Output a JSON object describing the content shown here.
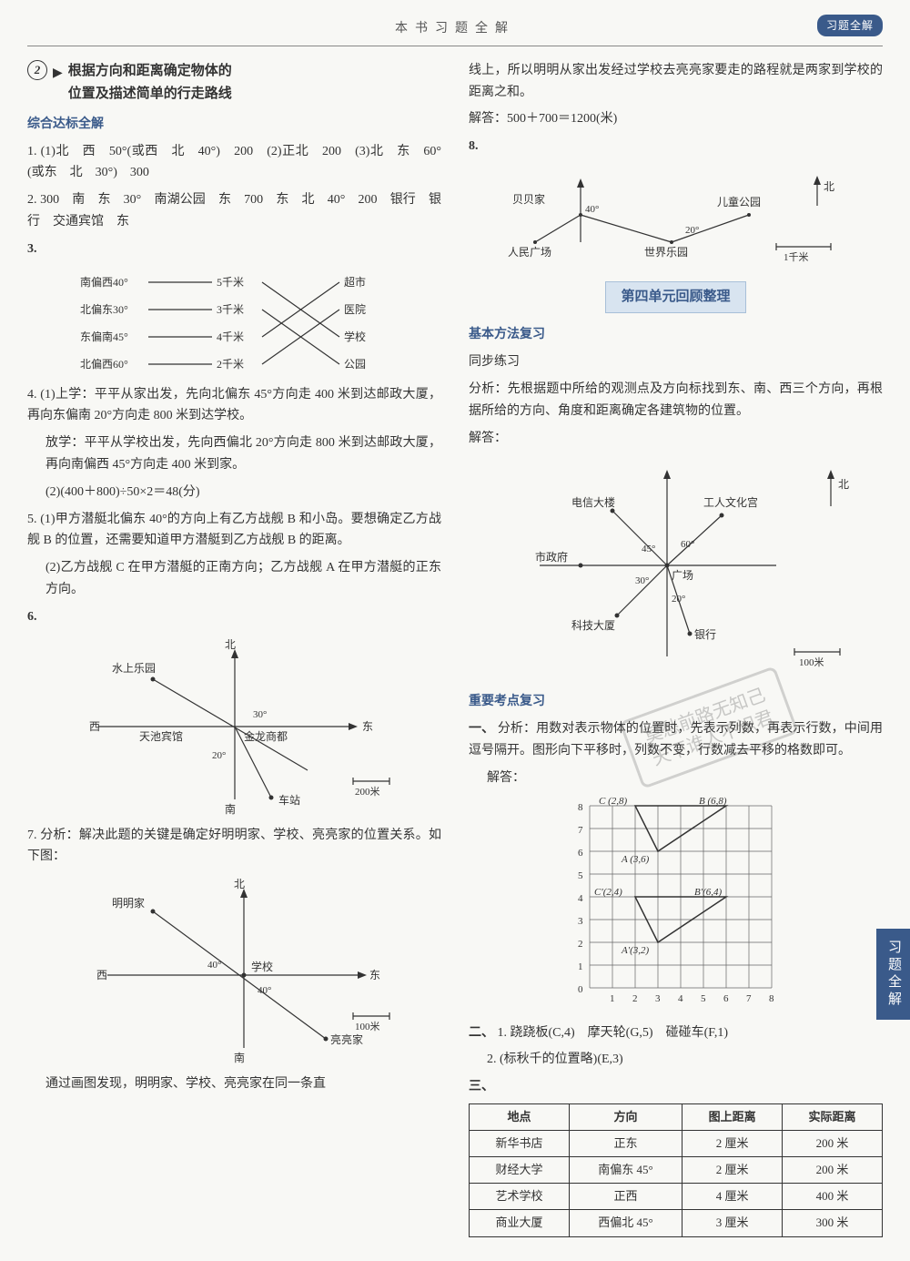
{
  "header": {
    "title": "本书习题全解",
    "badge": "习题全解"
  },
  "sideTab": "习题全解",
  "leftCol": {
    "section2": {
      "num": "2",
      "title_line1": "根据方向和距离确定物体的",
      "title_line2": "位置及描述简单的行走路线"
    },
    "subheading": "综合达标全解",
    "q1": "1. (1)北　西　50°(或西　北　40°)　200　(2)正北　200　(3)北　东　60°(或东　北　30°)　300",
    "q2": "2. 300　南　东　30°　南湖公园　东　700　东　北　40°　200　银行　银行　交通宾馆　东",
    "q3_num": "3.",
    "q3_left": [
      "南偏西40°",
      "北偏东30°",
      "东偏南45°",
      "北偏西60°"
    ],
    "q3_mid": [
      "5千米",
      "3千米",
      "4千米",
      "2千米"
    ],
    "q3_right": [
      "超市",
      "医院",
      "学校",
      "公园"
    ],
    "q4_1": "4. (1)上学：平平从家出发，先向北偏东 45°方向走 400 米到达邮政大厦，再向东偏南 20°方向走 800 米到达学校。",
    "q4_2": "放学：平平从学校出发，先向西偏北 20°方向走 800 米到达邮政大厦，再向南偏西 45°方向走 400 米到家。",
    "q4_3": "(2)(400＋800)÷50×2＝48(分)",
    "q5_1": "5. (1)甲方潜艇北偏东 40°的方向上有乙方战舰 B 和小岛。要想确定乙方战舰 B 的位置，还需要知道甲方潜艇到乙方战舰 B 的距离。",
    "q5_2": "(2)乙方战舰 C 在甲方潜艇的正南方向；乙方战舰 A 在甲方潜艇的正东方向。",
    "q6_num": "6.",
    "q6_labels": {
      "north": "北",
      "south": "南",
      "west": "西",
      "east": "东",
      "park": "水上乐园",
      "hotel": "天池宾馆",
      "mall": "金龙商都",
      "station": "车站",
      "a30": "30°",
      "a20": "20°",
      "scale": "200米"
    },
    "q7_intro": "7. 分析：解决此题的关键是确定好明明家、学校、亮亮家的位置关系。如下图：",
    "q7_labels": {
      "north": "北",
      "south": "南",
      "west": "西",
      "east": "东",
      "ming": "明明家",
      "school": "学校",
      "liang": "亮亮家",
      "a40a": "40°",
      "a40b": "40°",
      "scale": "100米"
    },
    "q7_end": "通过画图发现，明明家、学校、亮亮家在同一条直"
  },
  "rightCol": {
    "cont1": "线上，所以明明从家出发经过学校去亮亮家要走的路程就是两家到学校的距离之和。",
    "cont2": "解答：500＋700＝1200(米)",
    "q8_num": "8.",
    "q8_labels": {
      "bei1": "贝贝家",
      "park": "儿童公园",
      "square": "人民广场",
      "world": "世界乐园",
      "a40": "40°",
      "a20": "20°",
      "north": "北",
      "scale": "1千米"
    },
    "unitTitle": "第四单元回顾整理",
    "sub1": "基本方法复习",
    "sub2": "同步练习",
    "analysis1": "分析：先根据题中所给的观测点及方向标找到东、南、西三个方向，再根据所给的方向、角度和距离确定各建筑物的位置。",
    "answer_label": "解答：",
    "compass_labels": {
      "north": "北",
      "telecom": "电信大楼",
      "culture": "工人文化宫",
      "gov": "市政府",
      "square": "广场",
      "tech": "科技大厦",
      "bank": "银行",
      "a45": "45°",
      "a30": "30°",
      "a60": "60°",
      "a20": "20°",
      "scale": "100米"
    },
    "sub3": "重要考点复习",
    "p1_label": "一、",
    "p1_analysis": "分析：用数对表示物体的位置时，先表示列数，再表示行数，中间用逗号隔开。图形向下平移时，列数不变，行数减去平移的格数即可。",
    "p1_answer": "解答：",
    "grid_points": {
      "C": "C (2,8)",
      "B": "B (6,8)",
      "A": "A (3,6)",
      "Cp": "C'(2,4)",
      "Bp": "B'(6,4)",
      "Ap": "A'(3,2)"
    },
    "p2_label": "二、",
    "p2_1": "1. 跷跷板(C,4)　摩天轮(G,5)　碰碰车(F,1)",
    "p2_2": "2. (标秋千的位置略)(E,3)",
    "p3_label": "三、",
    "table": {
      "headers": [
        "地点",
        "方向",
        "图上距离",
        "实际距离"
      ],
      "rows": [
        [
          "新华书店",
          "正东",
          "2 厘米",
          "200 米"
        ],
        [
          "财经大学",
          "南偏东 45°",
          "2 厘米",
          "200 米"
        ],
        [
          "艺术学校",
          "正西",
          "4 厘米",
          "400 米"
        ],
        [
          "商业大厦",
          "西偏北 45°",
          "3 厘米",
          "300 米"
        ]
      ]
    }
  },
  "watermark": {
    "line1": "莫愁前路无知己",
    "line2": "天下谁人不识君"
  }
}
